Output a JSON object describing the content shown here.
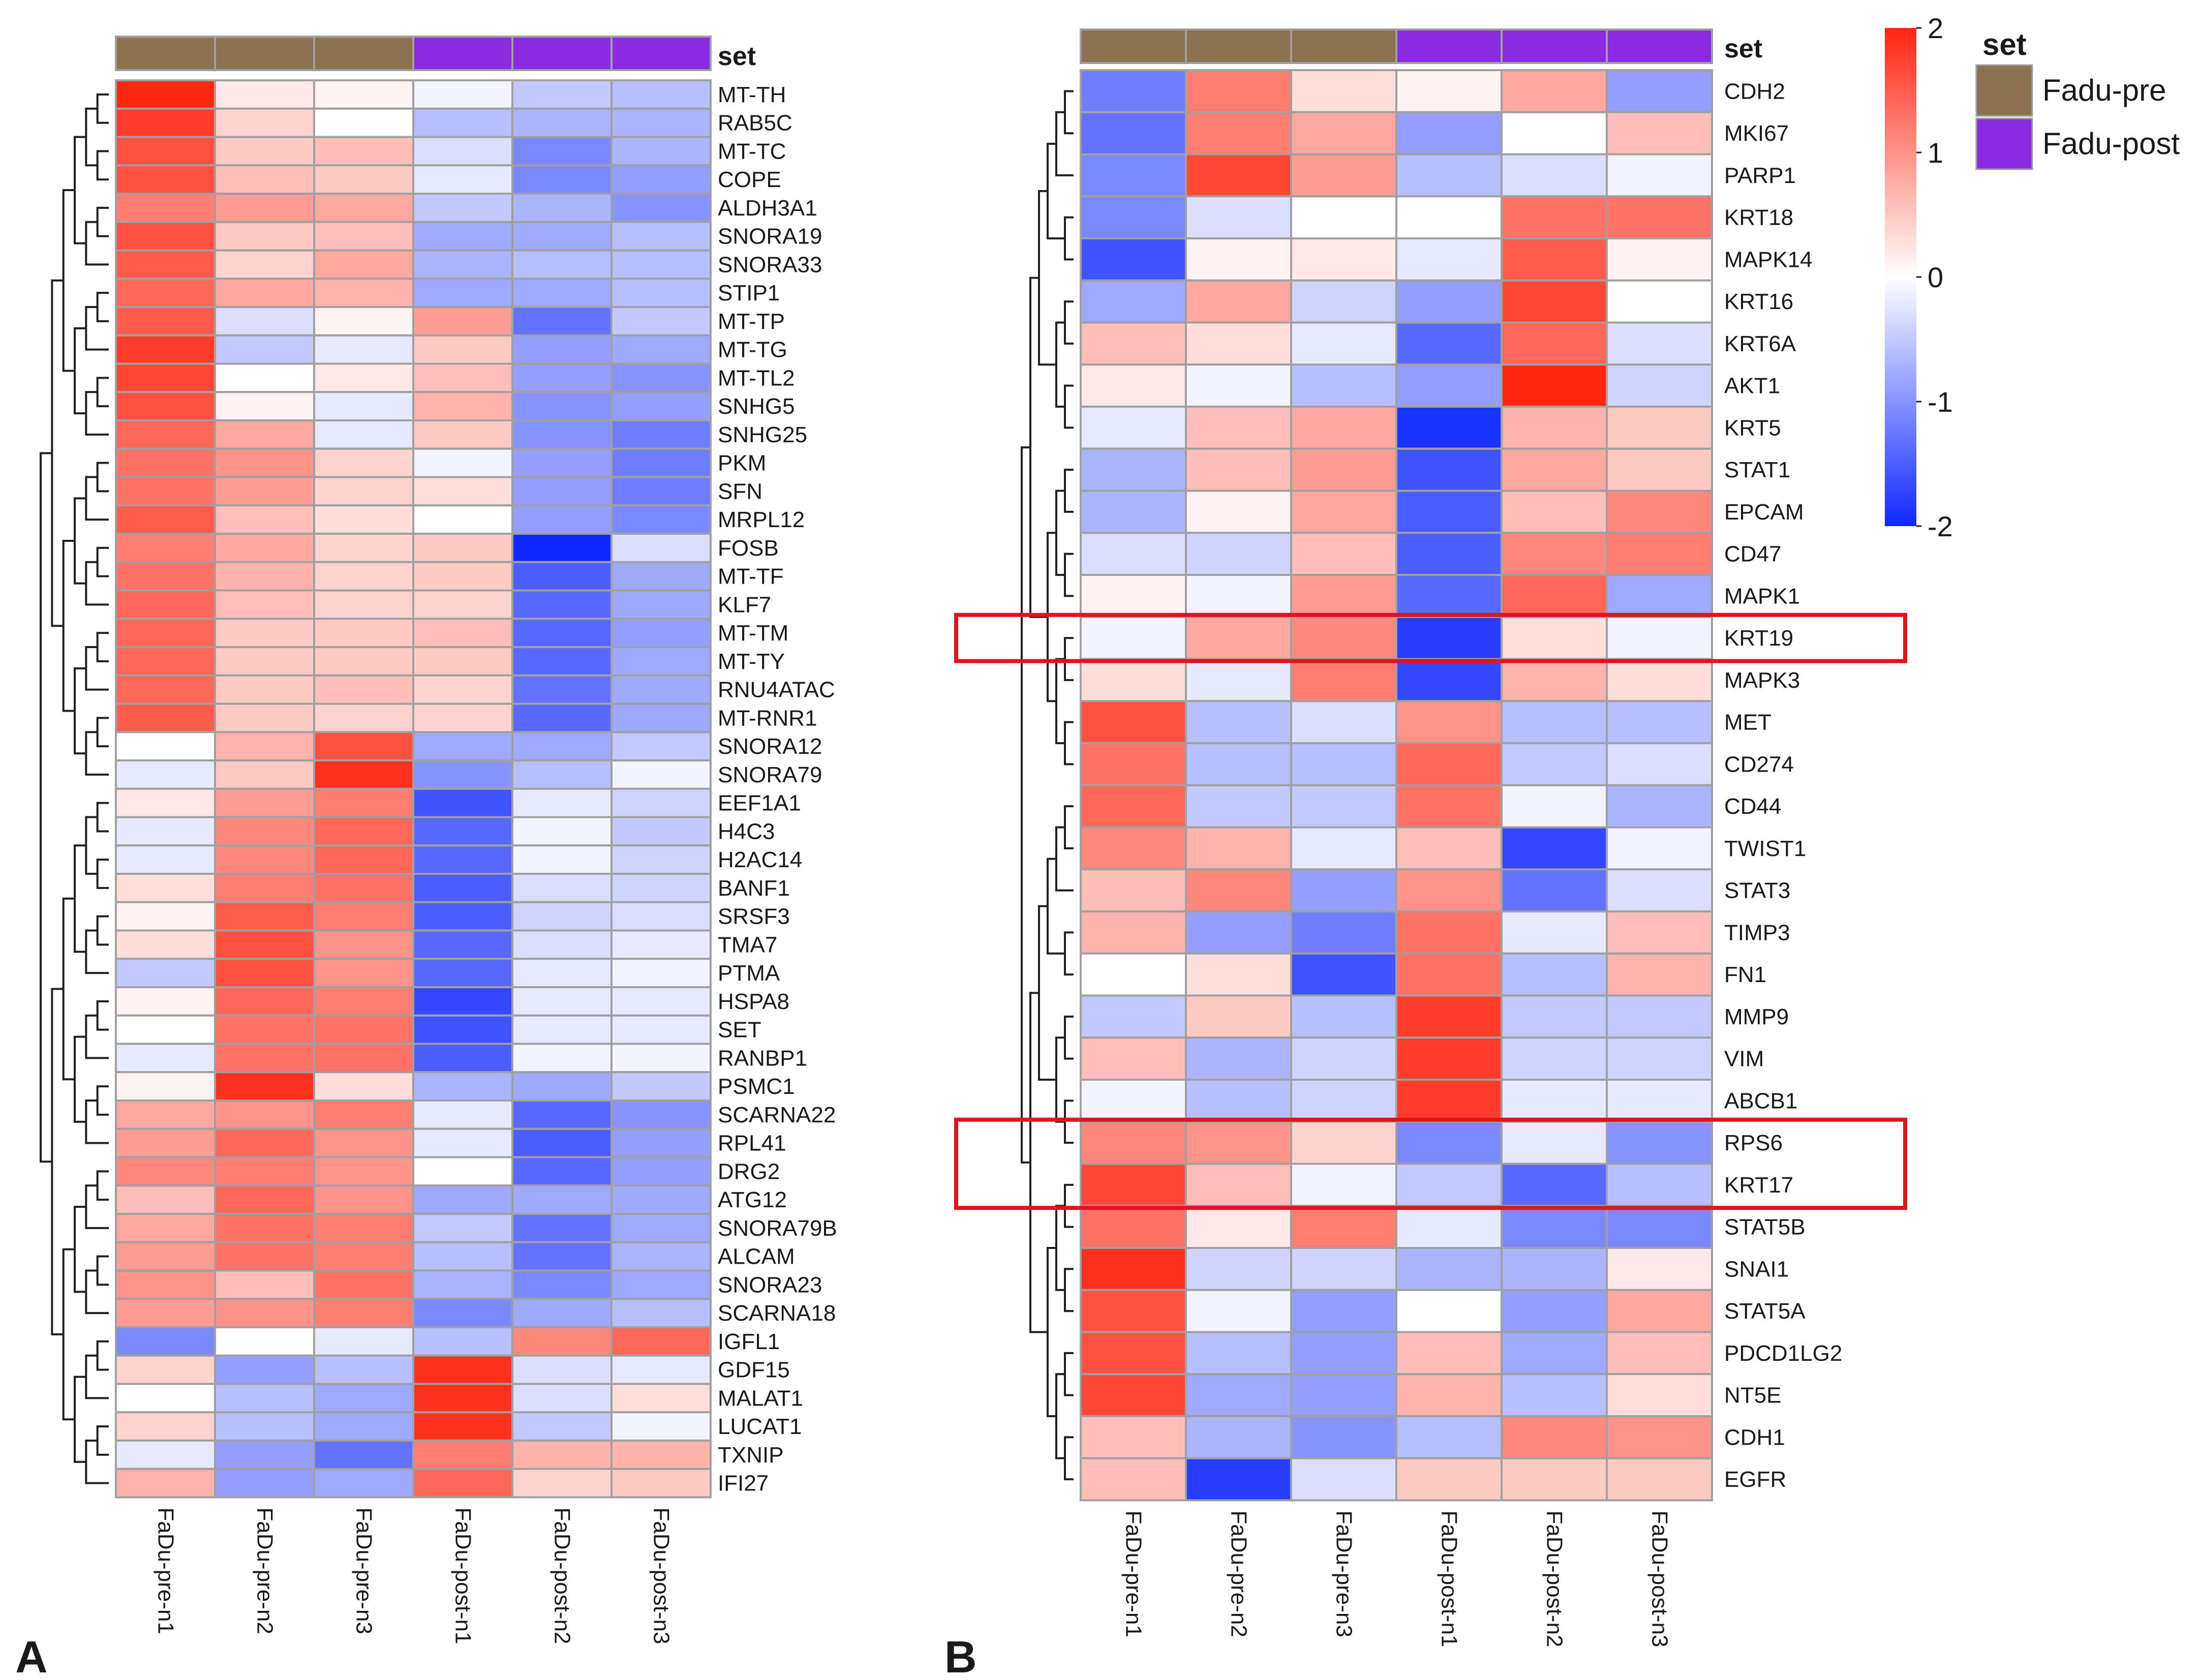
{
  "colors": {
    "low": "#0f28ff",
    "mid": "#ffffff",
    "high": "#ff2612",
    "fadu_pre": "#8b7251",
    "fadu_post": "#8a2be2",
    "highlight": "#e0141e",
    "grid": "#a0a0a0"
  },
  "legend": {
    "set_title": "set",
    "items": [
      {
        "label": "Fadu-pre",
        "color": "#8b7251"
      },
      {
        "label": "Fadu-post",
        "color": "#8a2be2"
      }
    ],
    "scale_ticks": [
      "2",
      "1",
      "0",
      "-1",
      "-2"
    ],
    "scale_values": [
      2,
      1,
      0,
      -1,
      -2
    ]
  },
  "chart_data": [
    {
      "type": "heatmap",
      "panel": "A",
      "annotation_title": "set",
      "columns": [
        "FaDu-pre-n1",
        "FaDu-pre-n2",
        "FaDu-pre-n3",
        "FaDu-post-n1",
        "FaDu-post-n2",
        "FaDu-post-n3"
      ],
      "column_set": [
        "pre",
        "pre",
        "pre",
        "post",
        "post",
        "post"
      ],
      "range": [
        -2,
        2
      ],
      "rows": [
        "MT-TH",
        "RAB5C",
        "MT-TC",
        "COPE",
        "ALDH3A1",
        "SNORA19",
        "SNORA33",
        "STIP1",
        "MT-TP",
        "MT-TG",
        "MT-TL2",
        "SNHG5",
        "SNHG25",
        "PKM",
        "SFN",
        "MRPL12",
        "FOSB",
        "MT-TF",
        "KLF7",
        "MT-TM",
        "MT-TY",
        "RNU4ATAC",
        "MT-RNR1",
        "SNORA12",
        "SNORA79",
        "EEF1A1",
        "H4C3",
        "H2AC14",
        "BANF1",
        "SRSF3",
        "TMA7",
        "PTMA",
        "HSPA8",
        "SET",
        "RANBP1",
        "PSMC1",
        "SCARNA22",
        "RPL41",
        "DRG2",
        "ATG12",
        "SNORA79B",
        "ALCAM",
        "SNORA23",
        "SCARNA18",
        "IGFL1",
        "GDF15",
        "MALAT1",
        "LUCAT1",
        "TXNIP",
        "IFI27"
      ],
      "values": [
        [
          2.0,
          0.2,
          0.1,
          -0.1,
          -0.5,
          -0.6
        ],
        [
          1.8,
          0.4,
          0.0,
          -0.6,
          -0.7,
          -0.7
        ],
        [
          1.6,
          0.5,
          0.6,
          -0.3,
          -1.1,
          -0.7
        ],
        [
          1.6,
          0.6,
          0.5,
          -0.2,
          -1.1,
          -0.9
        ],
        [
          1.2,
          0.9,
          0.8,
          -0.5,
          -0.7,
          -1.0
        ],
        [
          1.6,
          0.5,
          0.6,
          -0.8,
          -0.8,
          -0.6
        ],
        [
          1.5,
          0.4,
          0.8,
          -0.7,
          -0.6,
          -0.6
        ],
        [
          1.4,
          0.8,
          0.7,
          -0.8,
          -0.8,
          -0.6
        ],
        [
          1.5,
          -0.3,
          0.1,
          0.9,
          -1.3,
          -0.5
        ],
        [
          1.8,
          -0.5,
          -0.2,
          0.5,
          -0.9,
          -0.8
        ],
        [
          1.7,
          0.0,
          0.2,
          0.6,
          -0.9,
          -1.0
        ],
        [
          1.6,
          0.1,
          -0.2,
          0.7,
          -1.0,
          -0.9
        ],
        [
          1.4,
          0.8,
          -0.2,
          0.5,
          -1.0,
          -1.2
        ],
        [
          1.3,
          1.0,
          0.4,
          -0.1,
          -0.9,
          -1.2
        ],
        [
          1.3,
          0.9,
          0.4,
          0.3,
          -0.9,
          -1.2
        ],
        [
          1.5,
          0.6,
          0.3,
          0.0,
          -0.9,
          -1.1
        ],
        [
          1.2,
          0.8,
          0.4,
          0.5,
          -2.0,
          -0.3
        ],
        [
          1.3,
          0.7,
          0.4,
          0.5,
          -1.5,
          -0.8
        ],
        [
          1.4,
          0.6,
          0.4,
          0.4,
          -1.4,
          -0.8
        ],
        [
          1.4,
          0.5,
          0.5,
          0.6,
          -1.4,
          -0.9
        ],
        [
          1.4,
          0.5,
          0.5,
          0.5,
          -1.4,
          -0.8
        ],
        [
          1.4,
          0.5,
          0.6,
          0.4,
          -1.3,
          -0.8
        ],
        [
          1.5,
          0.5,
          0.4,
          0.4,
          -1.4,
          -0.8
        ],
        [
          0.0,
          0.7,
          1.6,
          -0.8,
          -0.8,
          -0.5
        ],
        [
          -0.2,
          0.5,
          1.9,
          -1.0,
          -0.6,
          -0.1
        ],
        [
          0.2,
          0.9,
          1.2,
          -1.6,
          -0.2,
          -0.4
        ],
        [
          -0.2,
          1.1,
          1.4,
          -1.4,
          -0.1,
          -0.5
        ],
        [
          -0.2,
          1.1,
          1.4,
          -1.4,
          -0.1,
          -0.4
        ],
        [
          0.3,
          1.2,
          1.3,
          -1.5,
          -0.3,
          -0.4
        ],
        [
          0.1,
          1.5,
          1.2,
          -1.5,
          -0.4,
          -0.3
        ],
        [
          0.3,
          1.6,
          1.0,
          -1.4,
          -0.3,
          -0.2
        ],
        [
          -0.5,
          1.6,
          1.0,
          -1.4,
          -0.2,
          -0.1
        ],
        [
          0.1,
          1.4,
          1.2,
          -1.7,
          -0.2,
          -0.2
        ],
        [
          0.0,
          1.3,
          1.3,
          -1.6,
          -0.2,
          -0.2
        ],
        [
          -0.2,
          1.3,
          1.3,
          -1.5,
          -0.1,
          -0.1
        ],
        [
          0.1,
          1.9,
          0.3,
          -0.7,
          -0.8,
          -0.5
        ],
        [
          0.8,
          1.0,
          1.2,
          -0.2,
          -1.4,
          -1.0
        ],
        [
          0.9,
          1.4,
          1.0,
          -0.2,
          -1.5,
          -0.9
        ],
        [
          1.1,
          1.2,
          1.0,
          0.0,
          -1.4,
          -0.9
        ],
        [
          0.6,
          1.4,
          1.0,
          -0.8,
          -0.8,
          -0.8
        ],
        [
          0.8,
          1.3,
          1.2,
          -0.5,
          -1.3,
          -0.8
        ],
        [
          0.9,
          1.3,
          1.2,
          -0.6,
          -1.3,
          -0.7
        ],
        [
          1.0,
          0.6,
          1.3,
          -0.7,
          -1.1,
          -0.8
        ],
        [
          0.9,
          1.0,
          1.2,
          -1.1,
          -0.8,
          -0.6
        ],
        [
          -1.1,
          0.0,
          -0.2,
          -0.6,
          1.1,
          1.4
        ],
        [
          0.4,
          -0.9,
          -0.6,
          1.9,
          -0.3,
          -0.2
        ],
        [
          0.0,
          -0.6,
          -0.8,
          1.9,
          -0.3,
          0.3
        ],
        [
          0.4,
          -0.6,
          -0.8,
          1.9,
          -0.5,
          -0.1
        ],
        [
          -0.2,
          -0.9,
          -1.3,
          1.2,
          0.7,
          0.7
        ],
        [
          0.7,
          -0.9,
          -0.8,
          1.4,
          0.4,
          0.5
        ]
      ]
    },
    {
      "type": "heatmap",
      "panel": "B",
      "annotation_title": "set",
      "columns": [
        "FaDu-pre-n1",
        "FaDu-pre-n2",
        "FaDu-pre-n3",
        "FaDu-post-n1",
        "FaDu-post-n2",
        "FaDu-post-n3"
      ],
      "column_set": [
        "pre",
        "pre",
        "pre",
        "post",
        "post",
        "post"
      ],
      "range": [
        -2,
        2
      ],
      "rows": [
        "CDH2",
        "MKI67",
        "PARP1",
        "KRT18",
        "MAPK14",
        "KRT16",
        "KRT6A",
        "AKT1",
        "KRT5",
        "STAT1",
        "EPCAM",
        "CD47",
        "MAPK1",
        "KRT19",
        "MAPK3",
        "MET",
        "CD274",
        "CD44",
        "TWIST1",
        "STAT3",
        "TIMP3",
        "FN1",
        "MMP9",
        "VIM",
        "ABCB1",
        "RPS6",
        "KRT17",
        "STAT5B",
        "SNAI1",
        "STAT5A",
        "PDCD1LG2",
        "NT5E",
        "CDH1",
        "EGFR"
      ],
      "values": [
        [
          -1.2,
          1.2,
          0.3,
          0.1,
          0.8,
          -0.9
        ],
        [
          -1.3,
          1.2,
          0.8,
          -0.9,
          0.0,
          0.6
        ],
        [
          -1.1,
          1.7,
          0.9,
          -0.6,
          -0.3,
          -0.1
        ],
        [
          -1.1,
          -0.3,
          0.0,
          0.0,
          1.3,
          1.3
        ],
        [
          -1.6,
          0.1,
          0.2,
          -0.2,
          1.5,
          0.1
        ],
        [
          -0.8,
          0.8,
          -0.4,
          -0.9,
          1.7,
          0.0
        ],
        [
          0.6,
          0.3,
          -0.2,
          -1.4,
          1.4,
          -0.3
        ],
        [
          0.2,
          -0.1,
          -0.6,
          -0.9,
          2.0,
          -0.4
        ],
        [
          -0.2,
          0.6,
          0.8,
          -1.9,
          0.7,
          0.5
        ],
        [
          -0.7,
          0.6,
          0.9,
          -1.6,
          0.8,
          0.5
        ],
        [
          -0.7,
          0.1,
          0.8,
          -1.5,
          0.6,
          1.1
        ],
        [
          -0.3,
          -0.4,
          0.6,
          -1.5,
          1.1,
          1.2
        ],
        [
          0.1,
          -0.1,
          0.9,
          -1.4,
          1.4,
          -0.8
        ],
        [
          -0.1,
          0.8,
          1.1,
          -1.8,
          0.3,
          -0.1
        ],
        [
          0.3,
          -0.2,
          1.2,
          -1.7,
          0.7,
          0.3
        ],
        [
          1.6,
          -0.6,
          -0.3,
          1.0,
          -0.6,
          -0.6
        ],
        [
          1.3,
          -0.6,
          -0.6,
          1.4,
          -0.5,
          -0.3
        ],
        [
          1.4,
          -0.5,
          -0.5,
          1.3,
          -0.1,
          -0.7
        ],
        [
          1.1,
          0.7,
          -0.2,
          0.6,
          -1.7,
          -0.1
        ],
        [
          0.6,
          1.1,
          -0.9,
          1.0,
          -1.3,
          -0.3
        ],
        [
          0.7,
          -0.9,
          -1.2,
          1.3,
          -0.2,
          0.6
        ],
        [
          0.0,
          0.3,
          -1.6,
          1.3,
          -0.6,
          0.7
        ],
        [
          -0.5,
          0.5,
          -0.6,
          1.8,
          -0.5,
          -0.5
        ],
        [
          0.6,
          -0.7,
          -0.4,
          1.8,
          -0.4,
          -0.4
        ],
        [
          -0.1,
          -0.6,
          -0.4,
          1.8,
          -0.2,
          -0.2
        ],
        [
          1.1,
          1.0,
          0.4,
          -1.1,
          -0.2,
          -1.0
        ],
        [
          1.7,
          0.6,
          -0.1,
          -0.5,
          -1.4,
          -0.6
        ],
        [
          1.3,
          0.2,
          1.2,
          -0.2,
          -1.1,
          -1.1
        ],
        [
          1.9,
          -0.4,
          -0.4,
          -0.7,
          -0.7,
          0.2
        ],
        [
          1.6,
          -0.1,
          -0.9,
          0.0,
          -0.9,
          0.8
        ],
        [
          1.6,
          -0.6,
          -0.9,
          0.6,
          -0.8,
          0.6
        ],
        [
          1.7,
          -0.8,
          -0.9,
          0.7,
          -0.6,
          0.3
        ],
        [
          0.6,
          -0.7,
          -1.0,
          -0.6,
          1.1,
          1.0
        ],
        [
          0.6,
          -1.8,
          -0.3,
          0.5,
          0.5,
          0.5
        ]
      ],
      "highlighted_rows": [
        [
          "KRT19"
        ],
        [
          "RPS6",
          "KRT17"
        ]
      ]
    }
  ],
  "panels": {
    "a_label": "A",
    "b_label": "B"
  }
}
